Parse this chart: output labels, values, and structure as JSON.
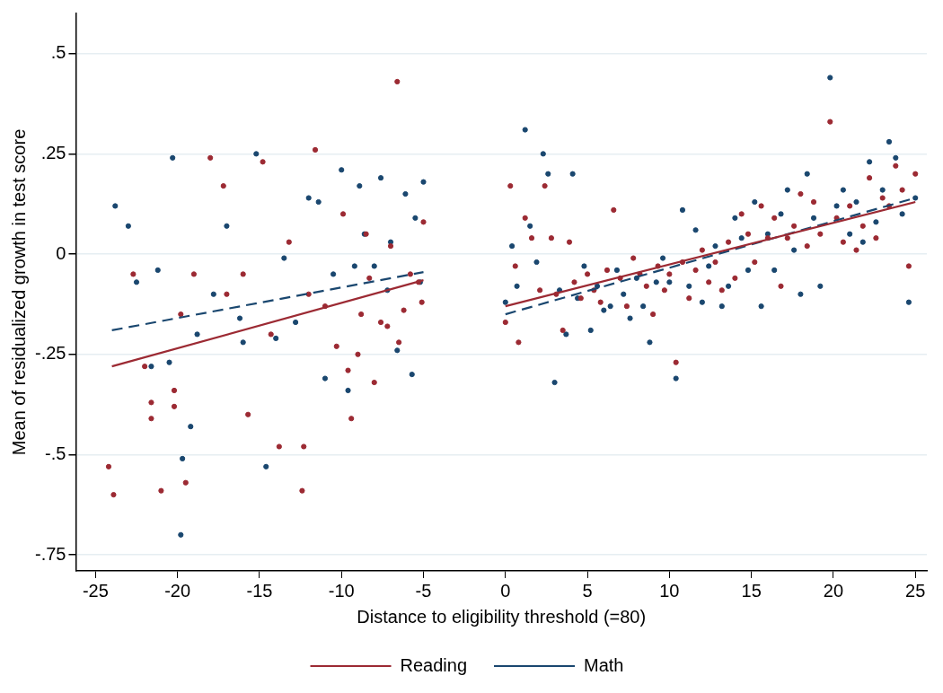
{
  "chart_data": {
    "type": "scatter",
    "xlabel": "Distance to eligibility threshold (=80)",
    "ylabel": "Mean of residualized growth in test score",
    "xlim": [
      -26.2,
      25.7
    ],
    "xticks": [
      -25,
      -20,
      -15,
      -10,
      -5,
      0,
      5,
      10,
      15,
      20,
      25
    ],
    "ylim": [
      -0.79,
      0.6
    ],
    "yticks": [
      {
        "value": 0.5,
        "label": ".5"
      },
      {
        "value": 0.25,
        "label": ".25"
      },
      {
        "value": 0,
        "label": "0"
      },
      {
        "value": -0.25,
        "label": "-.25"
      },
      {
        "value": -0.5,
        "label": "-.5"
      },
      {
        "value": -0.75,
        "label": "-.75"
      }
    ],
    "grid": "y",
    "legend": "bottom",
    "series": [
      {
        "marker": "circle",
        "color": "#9c2a33",
        "x": [
          -24.2,
          -23.9,
          -22.7,
          -22,
          -21.6,
          -21.6,
          -21,
          -20.2,
          -20.2,
          -19.5,
          -19.8,
          -19,
          -18,
          -17.2,
          -17,
          -16,
          -15.7,
          -14.8,
          -14.3,
          -13.8,
          -13.2,
          -12.4,
          -12.3,
          -12,
          -11.6,
          -11,
          -10.3,
          -9.9,
          -9.6,
          -9.4,
          -9,
          -8.8,
          -8.5,
          -8.3,
          -8,
          -7.6,
          -7.2,
          -7,
          -6.6,
          -6.5,
          -6.2,
          -5.8,
          -5.3,
          -5.1,
          -5,
          0,
          0.3,
          0.6,
          0.8,
          1.2,
          1.6,
          2.1,
          2.4,
          2.8,
          3.1,
          3.5,
          3.9,
          4.2,
          4.6,
          5,
          5.4,
          5.8,
          6.2,
          6.6,
          7,
          7.4,
          7.8,
          8.2,
          8.6,
          9,
          9.3,
          9.7,
          10,
          10.4,
          10.8,
          11.2,
          11.6,
          12,
          12.4,
          12.8,
          13.2,
          13.6,
          14,
          14.4,
          14.8,
          15.2,
          15.6,
          16,
          16.4,
          16.8,
          17.2,
          17.6,
          18,
          18.4,
          18.8,
          19.2,
          19.8,
          20.2,
          20.6,
          21,
          21.4,
          21.8,
          22.2,
          22.6,
          23,
          23.4,
          23.8,
          24.2,
          24.6,
          25
        ],
        "values": [
          -0.53,
          -0.6,
          -0.05,
          -0.28,
          -0.41,
          -0.37,
          -0.59,
          -0.38,
          -0.34,
          -0.57,
          -0.15,
          -0.05,
          0.24,
          0.17,
          -0.1,
          -0.05,
          -0.4,
          0.23,
          -0.2,
          -0.48,
          0.03,
          -0.59,
          -0.48,
          -0.1,
          0.26,
          -0.13,
          -0.23,
          0.1,
          -0.29,
          -0.41,
          -0.25,
          -0.15,
          0.05,
          -0.06,
          -0.32,
          -0.17,
          -0.18,
          0.02,
          0.43,
          -0.22,
          -0.14,
          -0.05,
          -0.07,
          -0.12,
          0.08,
          -0.17,
          0.17,
          -0.03,
          -0.22,
          0.09,
          0.04,
          -0.09,
          0.17,
          0.04,
          -0.1,
          -0.19,
          0.03,
          -0.07,
          -0.11,
          -0.05,
          -0.09,
          -0.12,
          -0.04,
          0.11,
          -0.06,
          -0.13,
          -0.01,
          -0.05,
          -0.08,
          -0.15,
          -0.03,
          -0.09,
          -0.05,
          -0.27,
          -0.02,
          -0.11,
          -0.04,
          0.01,
          -0.07,
          -0.02,
          -0.09,
          0.03,
          -0.06,
          0.1,
          0.05,
          -0.02,
          0.12,
          0.04,
          0.09,
          -0.08,
          0.04,
          0.07,
          0.15,
          0.02,
          0.13,
          0.05,
          0.33,
          0.09,
          0.03,
          0.12,
          0.01,
          0.07,
          0.19,
          0.04,
          0.14,
          0.12,
          0.22,
          0.16,
          -0.03,
          0.2
        ]
      },
      {
        "marker": "circle",
        "color": "#1a476f",
        "x": [
          -23.8,
          -23,
          -22.5,
          -21.6,
          -21.2,
          -20.3,
          -20.5,
          -19.7,
          -19.8,
          -19.2,
          -18.8,
          -17.8,
          -17,
          -16.2,
          -16,
          -15.2,
          -14.6,
          -14,
          -13.5,
          -12.8,
          -12,
          -11.4,
          -11,
          -10.5,
          -10,
          -9.6,
          -9.2,
          -8.9,
          -8.6,
          -8,
          -7.6,
          -7.2,
          -7,
          -6.6,
          -6.1,
          -5.7,
          -5.5,
          -5.2,
          -5,
          0,
          0.4,
          0.7,
          1.2,
          1.5,
          1.9,
          2.3,
          2.6,
          3,
          3.3,
          3.7,
          4.1,
          4.4,
          4.8,
          5.2,
          5.6,
          6,
          6.4,
          6.8,
          7.2,
          7.6,
          8,
          8.4,
          8.8,
          9.2,
          9.6,
          10,
          10.4,
          10.8,
          11.2,
          11.6,
          12,
          12.4,
          12.8,
          13.2,
          13.6,
          14,
          14.4,
          14.8,
          15.2,
          15.6,
          16,
          16.4,
          16.8,
          17.2,
          17.6,
          18,
          18.4,
          18.8,
          19.2,
          19.8,
          20.2,
          20.6,
          21,
          21.4,
          21.8,
          22.2,
          22.6,
          23,
          23.4,
          23.8,
          24.2,
          24.6,
          25
        ],
        "values": [
          0.12,
          0.07,
          -0.07,
          -0.28,
          -0.04,
          0.24,
          -0.27,
          -0.51,
          -0.7,
          -0.43,
          -0.2,
          -0.1,
          0.07,
          -0.16,
          -0.22,
          0.25,
          -0.53,
          -0.21,
          -0.01,
          -0.17,
          0.14,
          0.13,
          -0.31,
          -0.05,
          0.21,
          -0.34,
          -0.03,
          0.17,
          0.05,
          -0.03,
          0.19,
          -0.09,
          0.03,
          -0.24,
          0.15,
          -0.3,
          0.09,
          -0.07,
          0.18,
          -0.12,
          0.02,
          -0.08,
          0.31,
          0.07,
          -0.02,
          0.25,
          0.2,
          -0.32,
          -0.09,
          -0.2,
          0.2,
          -0.11,
          -0.03,
          -0.19,
          -0.08,
          -0.14,
          -0.13,
          -0.04,
          -0.1,
          -0.16,
          -0.06,
          -0.13,
          -0.22,
          -0.07,
          -0.01,
          -0.07,
          -0.31,
          0.11,
          -0.08,
          0.06,
          -0.12,
          -0.03,
          0.02,
          -0.13,
          -0.08,
          0.09,
          0.04,
          -0.04,
          0.13,
          -0.13,
          0.05,
          -0.04,
          0.1,
          0.16,
          0.01,
          -0.1,
          0.2,
          0.09,
          -0.08,
          0.44,
          0.12,
          0.16,
          0.05,
          0.13,
          0.03,
          0.23,
          0.08,
          0.16,
          0.28,
          0.24,
          0.1,
          -0.12,
          0.14
        ]
      },
      {
        "type": "line",
        "marker": "none",
        "name": "Reading",
        "color": "#9c2a33",
        "line_style": "solid",
        "x": [
          -24,
          -5,
          -2.5,
          0,
          25
        ],
        "values": [
          -0.28,
          -0.065,
          null,
          -0.13,
          0.13
        ]
      },
      {
        "type": "line",
        "marker": "none",
        "name": "Math",
        "color": "#1a476f",
        "line_style": "dashed",
        "x": [
          -24,
          -5,
          -2.5,
          0,
          25
        ],
        "values": [
          -0.19,
          -0.045,
          null,
          -0.15,
          0.14
        ]
      }
    ]
  }
}
